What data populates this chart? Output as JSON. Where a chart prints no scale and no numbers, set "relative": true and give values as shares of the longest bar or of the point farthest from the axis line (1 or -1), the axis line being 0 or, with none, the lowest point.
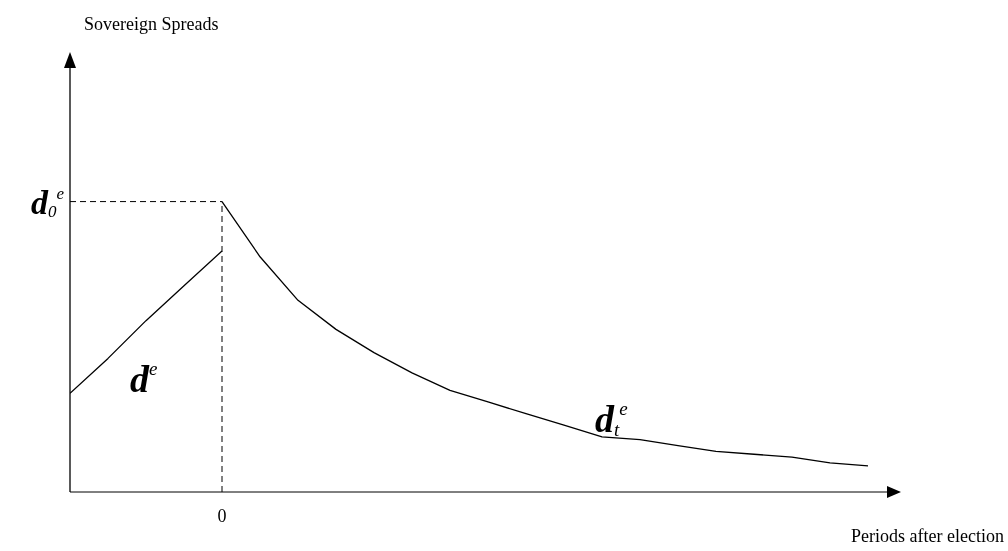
{
  "chart_data": {
    "type": "line",
    "relative": true,
    "xlabel": "Periods after election",
    "categories": [
      null,
      null,
      null,
      null,
      null,
      null,
      null,
      null,
      null,
      null,
      null,
      null,
      null,
      null,
      null,
      null,
      null,
      null,
      null,
      null,
      null,
      null
    ],
    "series": [
      {
        "color": "#000000",
        "values": [
          0.34,
          0.46,
          0.59,
          0.71,
          0.83,
          null,
          null,
          null,
          null,
          null,
          null,
          null,
          null,
          null,
          null,
          null,
          null,
          null,
          null,
          null,
          null,
          null
        ]
      },
      {
        "color": "#000000",
        "values": [
          null,
          null,
          null,
          null,
          1,
          0.81,
          0.66,
          0.56,
          0.48,
          0.41,
          0.35,
          0.31,
          0.27,
          0.23,
          0.19,
          0.18,
          0.16,
          0.14,
          0.13,
          0.12,
          0.1,
          0.09
        ]
      }
    ],
    "ref_lines": [
      {
        "axis": "y",
        "value": 1,
        "label": "d$_{0}$$^{e}$",
        "line_style": "dashed",
        "color": "#000000"
      }
    ],
    "annotations": [
      "Sovereign Spreads",
      "d$^{e}$",
      "d$_{t}$$^{e}$",
      "0"
    ],
    "marker": "none",
    "line_style": "solid"
  }
}
